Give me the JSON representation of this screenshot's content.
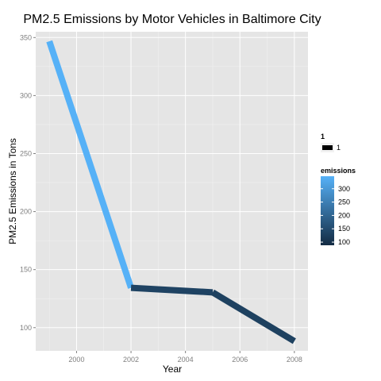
{
  "chart_data": {
    "type": "line",
    "title": "PM2.5 Emissions by Motor Vehicles in Baltimore City",
    "xlabel": "Year",
    "ylabel": "PM2.5 Emissions in Tons",
    "xlim": [
      1998.5,
      2008.5
    ],
    "ylim": [
      80,
      355
    ],
    "x_ticks": [
      2000,
      2002,
      2004,
      2006,
      2008
    ],
    "x_tick_labels": [
      "2000",
      "2002",
      "2004",
      "2006",
      "2008"
    ],
    "y_ticks": [
      100,
      150,
      200,
      250,
      300,
      350
    ],
    "y_tick_labels": [
      "100",
      "150",
      "200",
      "250",
      "300",
      "350"
    ],
    "grid": true,
    "series": [
      {
        "x": [
          1999,
          2002,
          2005,
          2008
        ],
        "y": [
          346.8,
          134.3,
          130.4,
          88.3
        ]
      }
    ],
    "color_scale": {
      "low_color": "#132B43",
      "high_color": "#56B1F7",
      "range": [
        88.3,
        346.8
      ]
    },
    "legend": {
      "placement": "right",
      "size_legend": {
        "title": "1",
        "label": "1"
      },
      "color_legend": {
        "title": "emissions",
        "labels": [
          "300",
          "250",
          "200",
          "150",
          "100"
        ],
        "values": [
          300,
          250,
          200,
          150,
          100
        ]
      }
    },
    "colors": {
      "panel": "#E5E5E5",
      "grid": "#FFFFFF",
      "key_line": "#000000"
    }
  }
}
